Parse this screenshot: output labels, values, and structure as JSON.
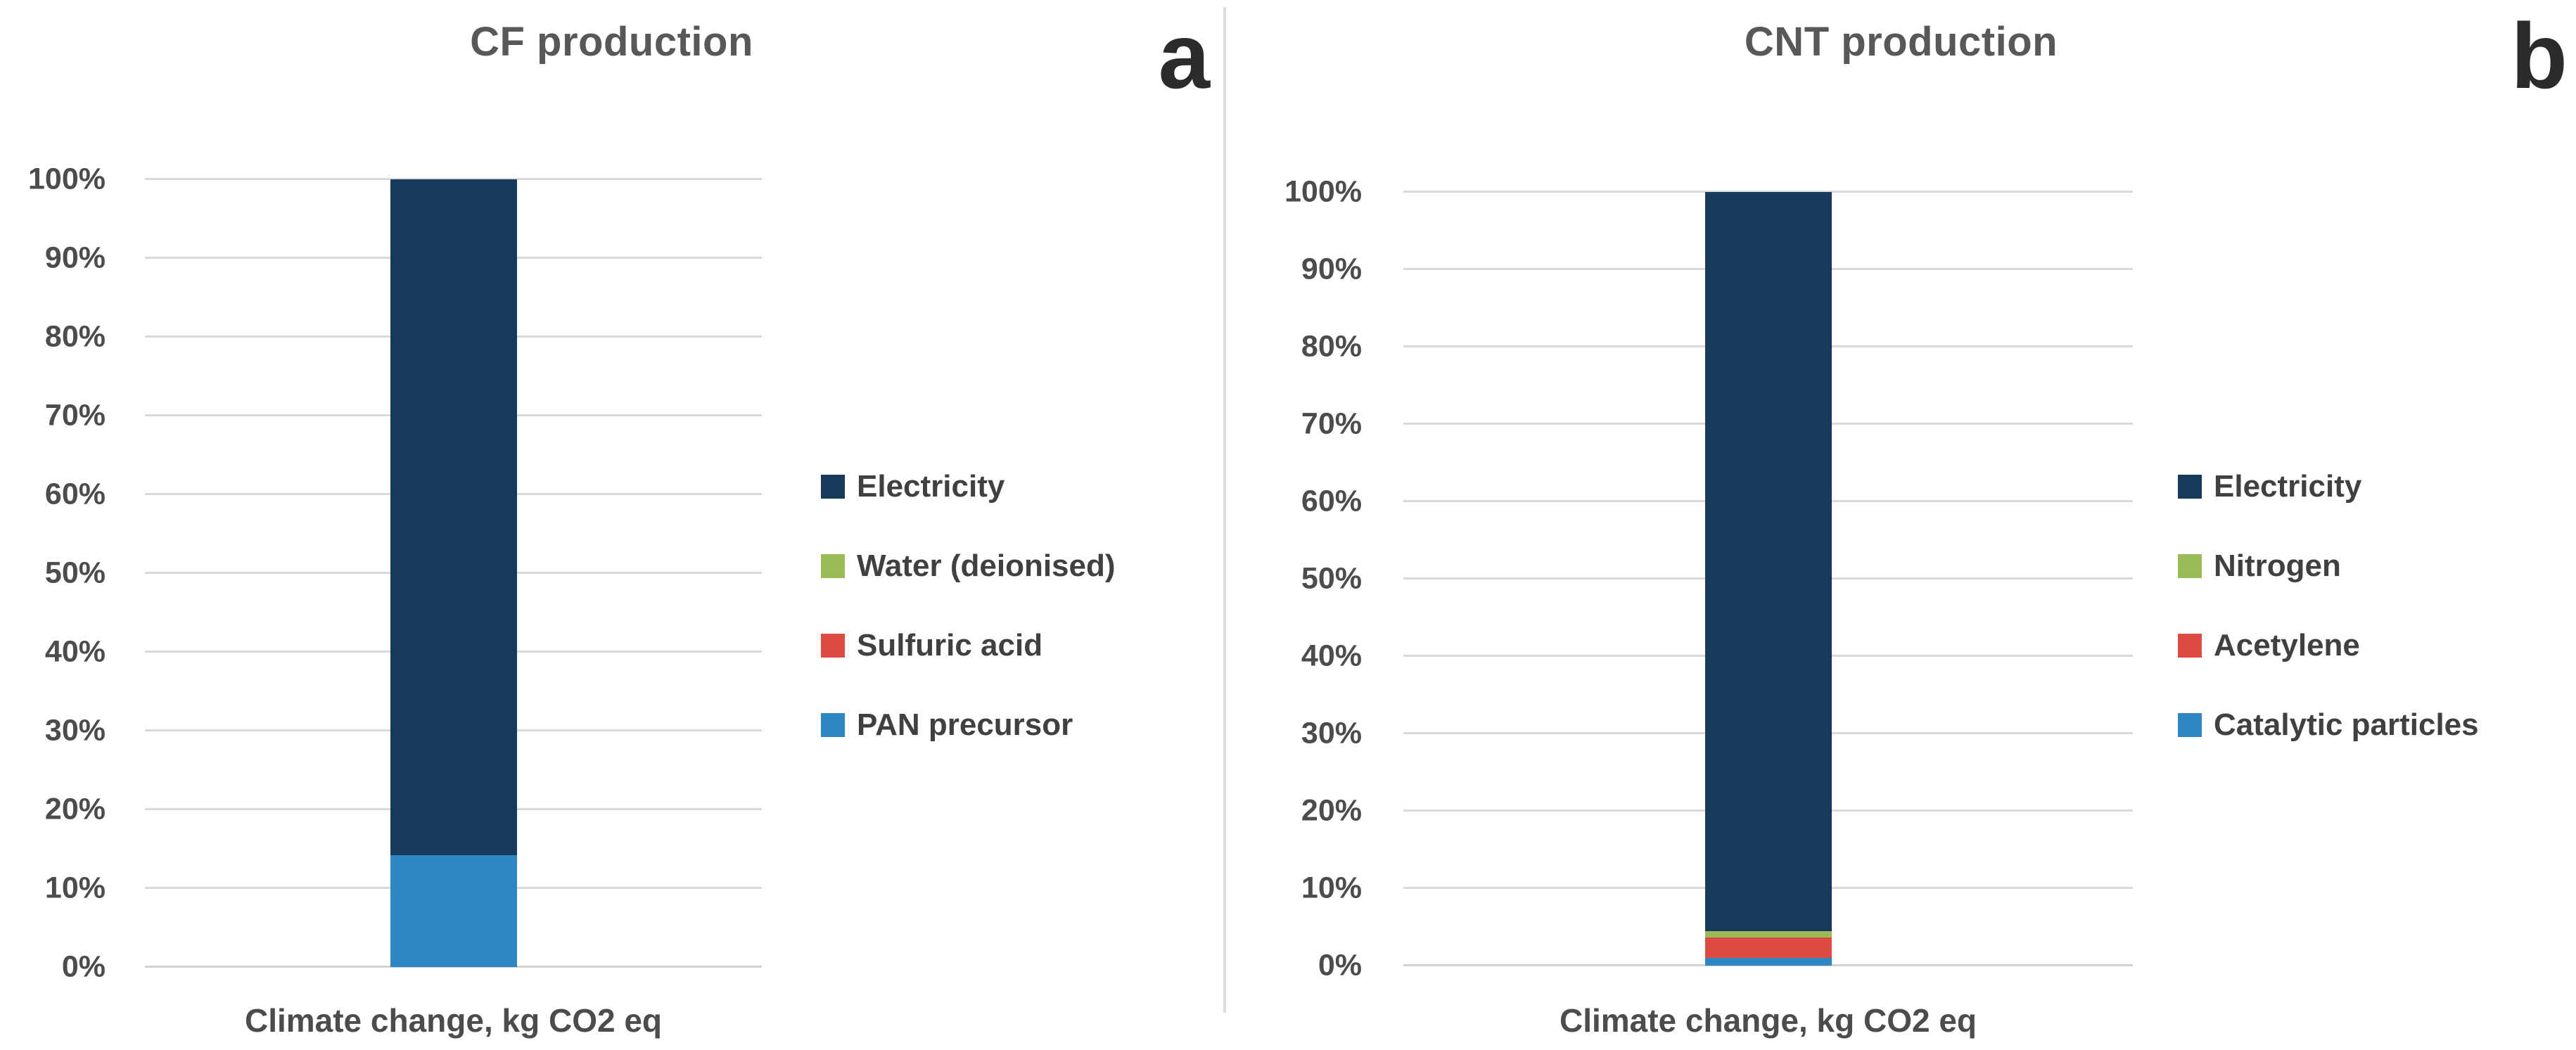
{
  "panels": [
    {
      "letter": "a"
    },
    {
      "letter": "b"
    }
  ],
  "colors": {
    "background": "#FFFFFF",
    "title_text": "#58585A",
    "tick_text": "#4C4C4C",
    "legend_text": "#404040",
    "panel_letter_text": "#2B2B2B",
    "gridline": "#D9D9D9",
    "divider": "#DCDCDC",
    "electricity_navy": "#17395C",
    "green": "#9BBB59",
    "red": "#DE4B42",
    "blue": "#2E86C5"
  },
  "chart_data": [
    {
      "type": "bar",
      "stacking": "percent",
      "title": "CF production",
      "xlabel": "Climate change, kg CO2 eq",
      "categories": [
        "Climate change, kg CO2 eq"
      ],
      "ylim": [
        0,
        100
      ],
      "yticks": [
        "0%",
        "10%",
        "20%",
        "30%",
        "40%",
        "50%",
        "60%",
        "70%",
        "80%",
        "90%",
        "100%"
      ],
      "grid": true,
      "legend_position": "right",
      "series": [
        {
          "name": "Electricity",
          "color": "#17395C",
          "values": [
            85.8
          ]
        },
        {
          "name": "Water (deionised)",
          "color": "#9BBB59",
          "values": [
            0
          ]
        },
        {
          "name": "Sulfuric acid",
          "color": "#DE4B42",
          "values": [
            0
          ]
        },
        {
          "name": "PAN precursor",
          "color": "#2E86C5",
          "values": [
            14.2
          ]
        }
      ]
    },
    {
      "type": "bar",
      "stacking": "percent",
      "title": "CNT production",
      "xlabel": "Climate change, kg CO2 eq",
      "categories": [
        "Climate change, kg CO2 eq"
      ],
      "ylim": [
        0,
        100
      ],
      "yticks": [
        "0%",
        "10%",
        "20%",
        "30%",
        "40%",
        "50%",
        "60%",
        "70%",
        "80%",
        "90%",
        "100%"
      ],
      "grid": true,
      "legend_position": "right",
      "series": [
        {
          "name": "Electricity",
          "color": "#17395C",
          "values": [
            95.5
          ]
        },
        {
          "name": "Nitrogen",
          "color": "#9BBB59",
          "values": [
            0.9
          ]
        },
        {
          "name": "Acetylene",
          "color": "#DE4B42",
          "values": [
            2.6
          ]
        },
        {
          "name": "Catalytic particles",
          "color": "#2E86C5",
          "values": [
            1.0
          ]
        }
      ]
    }
  ]
}
